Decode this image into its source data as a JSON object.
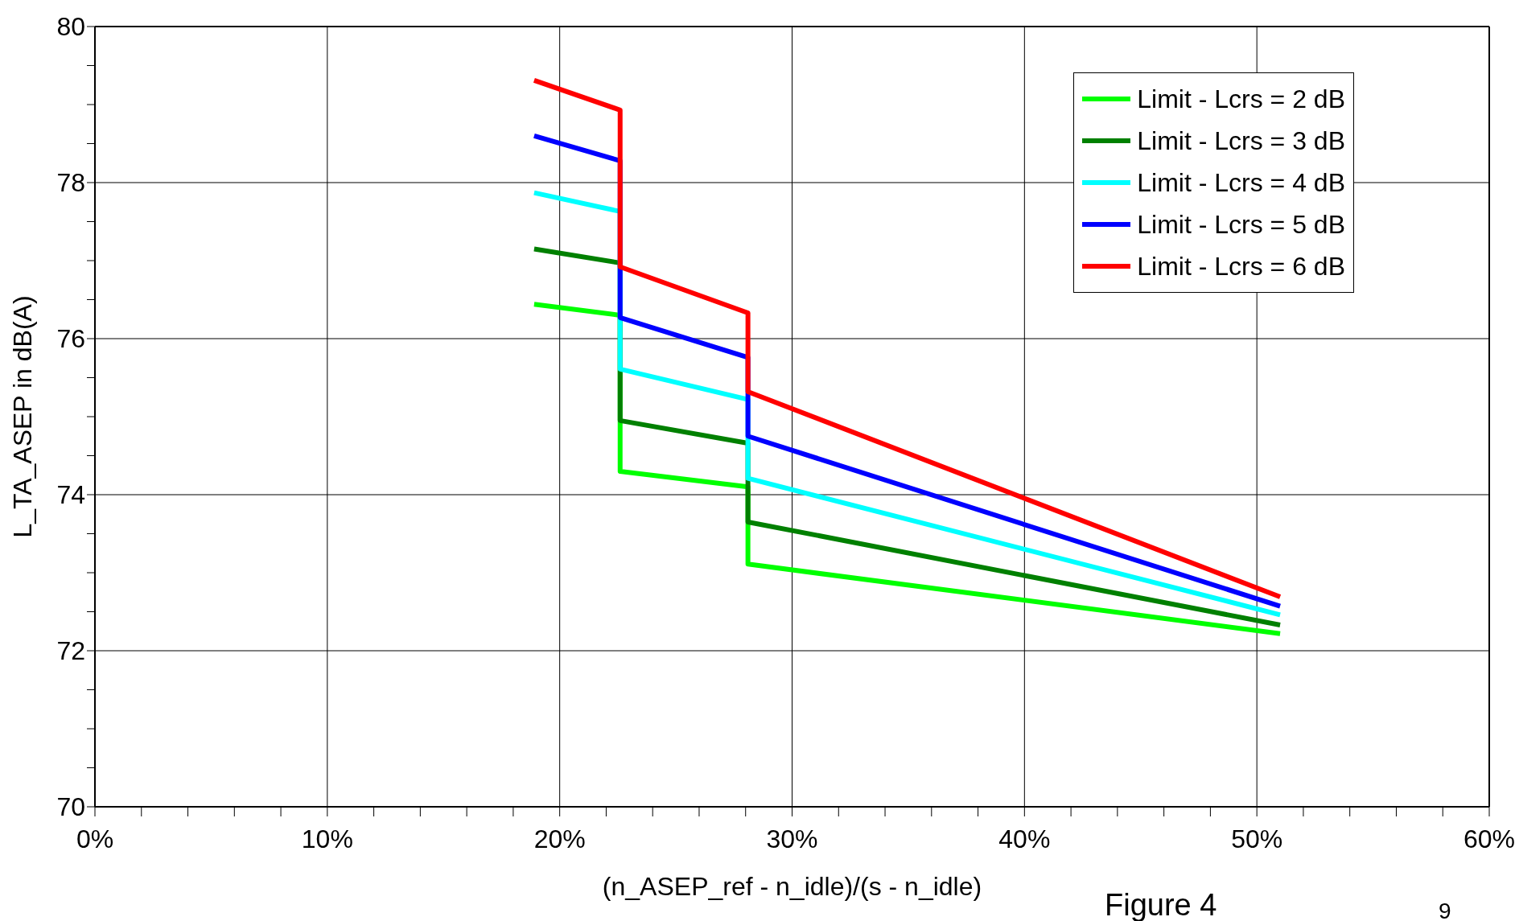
{
  "chart_data": {
    "type": "line",
    "xlabel": "(n_ASEP_ref - n_idle)/(s - n_idle)",
    "ylabel": "L_TA_ASEP in dB(A)",
    "annotations": [
      "Figure 4",
      "9"
    ],
    "x": [
      18.9,
      22.6,
      22.6,
      28.1,
      28.1,
      51
    ],
    "series": [
      {
        "name": "Limit - Lcrs = 2 dB",
        "color": "#00ff00",
        "values": [
          76.44,
          76.3,
          74.3,
          74.1,
          73.11,
          72.22
        ]
      },
      {
        "name": "Limit - Lcrs = 3 dB",
        "color": "#008000",
        "values": [
          77.15,
          76.97,
          74.95,
          74.66,
          73.65,
          72.33
        ]
      },
      {
        "name": "Limit - Lcrs = 4 dB",
        "color": "#00ffff",
        "values": [
          77.87,
          77.63,
          75.61,
          75.22,
          74.21,
          72.46
        ]
      },
      {
        "name": "Limit - Lcrs = 5 dB",
        "color": "#0000ff",
        "values": [
          78.6,
          78.28,
          76.27,
          75.76,
          74.75,
          72.57
        ]
      },
      {
        "name": "Limit - Lcrs = 6 dB",
        "color": "#ff0000",
        "values": [
          79.31,
          78.93,
          76.92,
          76.33,
          75.32,
          72.69
        ]
      }
    ],
    "xlim": [
      0,
      60
    ],
    "xticks": [
      {
        "value": 0,
        "label": "0%"
      },
      {
        "value": 2,
        "label": null
      },
      {
        "value": 4,
        "label": null
      },
      {
        "value": 6,
        "label": null
      },
      {
        "value": 8,
        "label": null
      },
      {
        "value": 10,
        "label": "10%"
      },
      {
        "value": 12,
        "label": null
      },
      {
        "value": 14,
        "label": null
      },
      {
        "value": 16,
        "label": null
      },
      {
        "value": 18,
        "label": null
      },
      {
        "value": 20,
        "label": "20%"
      },
      {
        "value": 22,
        "label": null
      },
      {
        "value": 24,
        "label": null
      },
      {
        "value": 26,
        "label": null
      },
      {
        "value": 28,
        "label": null
      },
      {
        "value": 30,
        "label": "30%"
      },
      {
        "value": 32,
        "label": null
      },
      {
        "value": 34,
        "label": null
      },
      {
        "value": 36,
        "label": null
      },
      {
        "value": 38,
        "label": null
      },
      {
        "value": 40,
        "label": "40%"
      },
      {
        "value": 42,
        "label": null
      },
      {
        "value": 44,
        "label": null
      },
      {
        "value": 46,
        "label": null
      },
      {
        "value": 48,
        "label": null
      },
      {
        "value": 50,
        "label": "50%"
      },
      {
        "value": 52,
        "label": null
      },
      {
        "value": 54,
        "label": null
      },
      {
        "value": 56,
        "label": null
      },
      {
        "value": 58,
        "label": null
      },
      {
        "value": 60,
        "label": "60%"
      }
    ],
    "ylim": [
      70,
      80
    ],
    "yticks": [
      70,
      {
        "value": 70.5,
        "label": null
      },
      {
        "value": 71,
        "label": null
      },
      {
        "value": 71.5,
        "label": null
      },
      72,
      {
        "value": 72.5,
        "label": null
      },
      {
        "value": 73,
        "label": null
      },
      {
        "value": 73.5,
        "label": null
      },
      74,
      {
        "value": 74.5,
        "label": null
      },
      {
        "value": 75,
        "label": null
      },
      {
        "value": 75.5,
        "label": null
      },
      76,
      {
        "value": 76.5,
        "label": null
      },
      {
        "value": 77,
        "label": null
      },
      {
        "value": 77.5,
        "label": null
      },
      78,
      {
        "value": 78.5,
        "label": null
      },
      {
        "value": 79,
        "label": null
      },
      {
        "value": 79.5,
        "label": null
      },
      80
    ],
    "grid": true,
    "legend": "top right",
    "marker": "none",
    "line_style": "solid"
  }
}
